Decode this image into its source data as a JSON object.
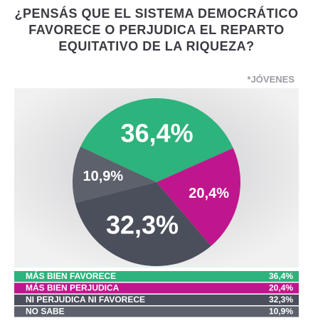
{
  "chart_data": {
    "type": "pie",
    "title": "¿PENSÁS QUE EL SISTEMA DEMOCRÁTICO FAVORECE O PERJUDICA EL REPARTO EQUITATIVO DE LA RIQUEZA?",
    "subtitle": "*JÓVENES",
    "categories": [
      "MÁS BIEN FAVORECE",
      "MÁS BIEN PERJUDICA",
      "NI PERJUDICA NI FAVORECE",
      "NO SABE"
    ],
    "values": [
      36.4,
      20.4,
      32.3,
      10.9
    ],
    "value_labels": [
      "36,4%",
      "20,4%",
      "32,3%",
      "10,9%"
    ],
    "colors": [
      "#2db37c",
      "#c0168d",
      "#4a4f5b",
      "#5d616c"
    ]
  }
}
